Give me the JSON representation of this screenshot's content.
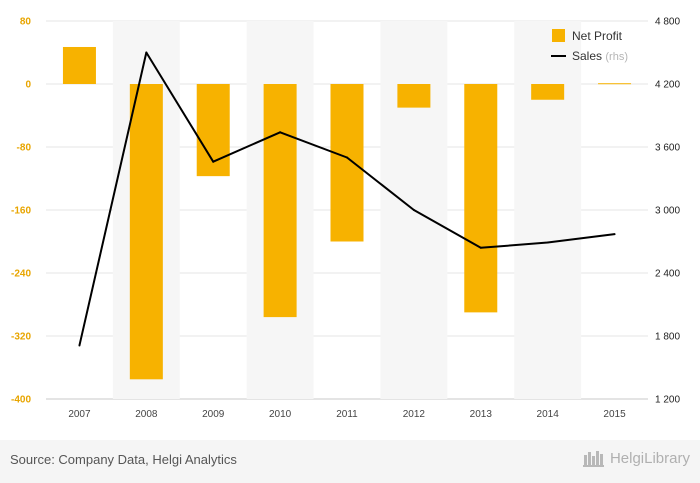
{
  "chart_data": {
    "type": "bar+line",
    "categories": [
      "2007",
      "2008",
      "2009",
      "2010",
      "2011",
      "2012",
      "2013",
      "2014",
      "2015"
    ],
    "series": [
      {
        "name": "Net Profit",
        "kind": "bar",
        "axis": "left",
        "color": "#f7b200",
        "values": [
          47,
          -375,
          -117,
          -296,
          -200,
          -30,
          -290,
          -20,
          1
        ]
      },
      {
        "name": "Sales",
        "name_suffix": "(rhs)",
        "kind": "line",
        "axis": "right",
        "color": "#000000",
        "values": [
          1710,
          4500,
          3460,
          3740,
          3500,
          3000,
          2640,
          2690,
          2770
        ]
      }
    ],
    "left_axis": {
      "min": -400,
      "max": 80,
      "ticks": [
        80,
        0,
        -80,
        -160,
        -240,
        -320,
        -400
      ]
    },
    "right_axis": {
      "min": 1200,
      "max": 4800,
      "ticks": [
        "4 800",
        "4 200",
        "3 600",
        "3 000",
        "2 400",
        "1 800",
        "1 200"
      ],
      "tick_values": [
        4800,
        4200,
        3600,
        3000,
        2400,
        1800,
        1200
      ]
    },
    "grid": true,
    "legend_position": "top-right"
  },
  "footer": {
    "source": "Source: Company Data, Helgi Analytics",
    "brand": "HelgiLibrary"
  }
}
